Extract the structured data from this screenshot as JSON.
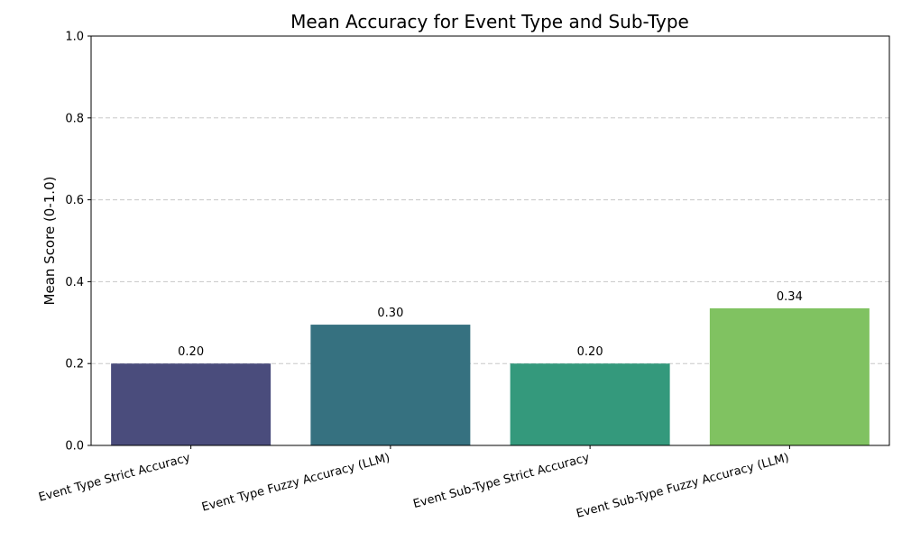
{
  "chart_data": {
    "type": "bar",
    "title": "Mean Accuracy for Event Type and Sub-Type",
    "xlabel": "",
    "ylabel": "Mean Score (0-1.0)",
    "ylim": [
      0,
      1.0
    ],
    "yticks": [
      0.0,
      0.2,
      0.4,
      0.6,
      0.8,
      1.0
    ],
    "ytick_labels": [
      "0.0",
      "0.2",
      "0.4",
      "0.6",
      "0.8",
      "1.0"
    ],
    "grid": "y-dashed",
    "categories": [
      "Event Type Strict Accuracy",
      "Event Type Fuzzy Accuracy (LLM)",
      "Event Sub-Type Strict Accuracy",
      "Event Sub-Type Fuzzy Accuracy (LLM)"
    ],
    "values": [
      0.2,
      0.295,
      0.2,
      0.335
    ],
    "value_labels": [
      "0.20",
      "0.30",
      "0.20",
      "0.34"
    ],
    "colors": [
      "#4a4c7c",
      "#367180",
      "#34997c",
      "#80c261"
    ]
  }
}
